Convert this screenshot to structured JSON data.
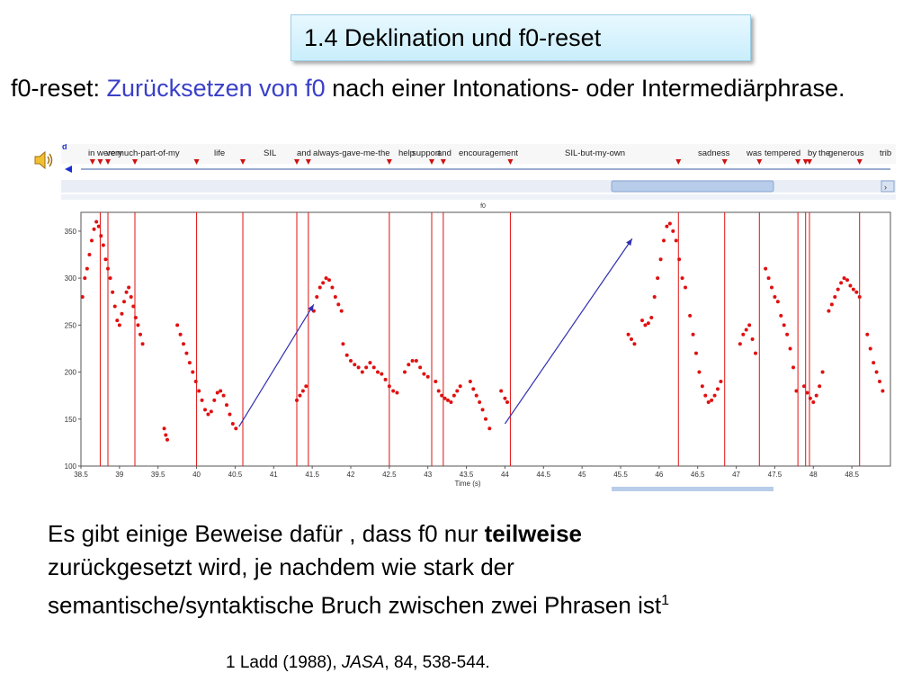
{
  "slide": {
    "title": "1.4 Deklination und f0-reset",
    "intro_prefix": "f0-reset: ",
    "intro_highlight1": "Zurücksetzen von f0",
    "intro_mid": " nach einer Intonations- oder Intermediärphrase."
  },
  "praat": {
    "toolbar_letter": "d",
    "panel_title": "f0",
    "xlabel": "Time (s)",
    "word_labels": [
      "in",
      "were",
      "very",
      "much-part-of-my",
      "life",
      "SIL",
      "and",
      "always-gave-me-the",
      "help",
      "support",
      "and",
      "encouragement",
      "SIL-but-my-own",
      "sadness",
      "was",
      "tempered",
      "by",
      "the",
      "generous",
      "trib"
    ],
    "colors": {
      "data": "#e01010",
      "boundary": "#e01010",
      "arrow": "#3030b0",
      "marker": "#d01010"
    }
  },
  "chart_data": {
    "type": "scatter",
    "title": "f0",
    "xlabel": "Time (s)",
    "ylabel": "",
    "xlim": [
      38.5,
      49.0
    ],
    "ylim": [
      100,
      370
    ],
    "xticks": [
      "38.5",
      "39",
      "39.5",
      "40",
      "40.5",
      "41",
      "41.5",
      "42",
      "42.5",
      "43",
      "43.5",
      "44",
      "44.5",
      "45",
      "45.5",
      "46",
      "46.5",
      "47",
      "47.5",
      "48",
      "48.5"
    ],
    "yticks": [
      "100",
      "150",
      "200",
      "250",
      "300",
      "350"
    ],
    "boundaries": [
      38.75,
      38.85,
      39.2,
      40.0,
      40.6,
      41.3,
      41.45,
      42.5,
      43.05,
      43.2,
      44.07,
      46.25,
      46.85,
      47.3,
      47.8,
      47.9,
      47.95,
      48.6
    ],
    "segments": [
      [
        [
          38.52,
          280
        ],
        [
          38.55,
          300
        ],
        [
          38.58,
          310
        ],
        [
          38.61,
          325
        ],
        [
          38.64,
          340
        ],
        [
          38.67,
          352
        ],
        [
          38.7,
          360
        ],
        [
          38.73,
          355
        ],
        [
          38.76,
          345
        ],
        [
          38.79,
          335
        ],
        [
          38.82,
          320
        ],
        [
          38.85,
          310
        ],
        [
          38.88,
          300
        ],
        [
          38.91,
          285
        ],
        [
          38.94,
          270
        ],
        [
          38.97,
          255
        ],
        [
          39.0,
          250
        ],
        [
          39.03,
          262
        ],
        [
          39.06,
          275
        ],
        [
          39.09,
          285
        ],
        [
          39.12,
          290
        ],
        [
          39.15,
          280
        ],
        [
          39.18,
          270
        ],
        [
          39.21,
          258
        ],
        [
          39.24,
          250
        ],
        [
          39.27,
          240
        ],
        [
          39.3,
          230
        ]
      ],
      [
        [
          39.58,
          140
        ],
        [
          39.6,
          133
        ],
        [
          39.62,
          128
        ]
      ],
      [
        [
          39.75,
          250
        ],
        [
          39.79,
          240
        ],
        [
          39.83,
          230
        ],
        [
          39.87,
          220
        ],
        [
          39.91,
          210
        ],
        [
          39.95,
          200
        ],
        [
          39.99,
          190
        ],
        [
          40.03,
          180
        ],
        [
          40.07,
          170
        ],
        [
          40.11,
          160
        ],
        [
          40.15,
          155
        ],
        [
          40.19,
          158
        ],
        [
          40.23,
          170
        ],
        [
          40.27,
          178
        ],
        [
          40.31,
          180
        ],
        [
          40.35,
          175
        ],
        [
          40.39,
          165
        ],
        [
          40.43,
          155
        ],
        [
          40.47,
          145
        ],
        [
          40.51,
          140
        ]
      ],
      [
        [
          41.3,
          170
        ],
        [
          41.34,
          175
        ],
        [
          41.38,
          180
        ],
        [
          41.42,
          185
        ]
      ],
      [
        [
          41.52,
          265
        ],
        [
          41.56,
          280
        ],
        [
          41.6,
          290
        ],
        [
          41.64,
          295
        ],
        [
          41.68,
          300
        ],
        [
          41.72,
          298
        ],
        [
          41.76,
          290
        ],
        [
          41.8,
          280
        ],
        [
          41.84,
          272
        ],
        [
          41.88,
          265
        ]
      ],
      [
        [
          41.9,
          230
        ],
        [
          41.95,
          218
        ],
        [
          42.0,
          212
        ],
        [
          42.05,
          208
        ],
        [
          42.1,
          205
        ],
        [
          42.15,
          200
        ],
        [
          42.2,
          205
        ],
        [
          42.25,
          210
        ],
        [
          42.3,
          205
        ],
        [
          42.35,
          200
        ],
        [
          42.4,
          198
        ],
        [
          42.45,
          192
        ],
        [
          42.5,
          185
        ],
        [
          42.55,
          180
        ],
        [
          42.6,
          178
        ]
      ],
      [
        [
          42.7,
          200
        ],
        [
          42.75,
          208
        ],
        [
          42.8,
          212
        ],
        [
          42.85,
          212
        ],
        [
          42.9,
          205
        ],
        [
          42.95,
          198
        ],
        [
          43.0,
          195
        ]
      ],
      [
        [
          43.1,
          190
        ],
        [
          43.14,
          180
        ],
        [
          43.18,
          175
        ],
        [
          43.22,
          172
        ],
        [
          43.26,
          170
        ],
        [
          43.3,
          168
        ],
        [
          43.34,
          175
        ],
        [
          43.38,
          180
        ],
        [
          43.42,
          185
        ]
      ],
      [
        [
          43.55,
          190
        ],
        [
          43.59,
          182
        ],
        [
          43.63,
          175
        ],
        [
          43.67,
          168
        ],
        [
          43.71,
          160
        ],
        [
          43.75,
          150
        ],
        [
          43.8,
          140
        ]
      ],
      [
        [
          43.95,
          180
        ],
        [
          44.0,
          172
        ],
        [
          44.03,
          168
        ]
      ],
      [
        [
          45.6,
          240
        ],
        [
          45.64,
          235
        ],
        [
          45.68,
          230
        ]
      ],
      [
        [
          45.78,
          255
        ],
        [
          45.82,
          250
        ],
        [
          45.86,
          252
        ],
        [
          45.9,
          258
        ],
        [
          45.94,
          280
        ],
        [
          45.98,
          300
        ],
        [
          46.02,
          320
        ],
        [
          46.06,
          340
        ],
        [
          46.1,
          355
        ],
        [
          46.14,
          358
        ],
        [
          46.18,
          350
        ],
        [
          46.22,
          340
        ],
        [
          46.26,
          320
        ],
        [
          46.3,
          300
        ],
        [
          46.34,
          290
        ]
      ],
      [
        [
          46.4,
          260
        ],
        [
          46.44,
          240
        ],
        [
          46.48,
          220
        ],
        [
          46.52,
          200
        ],
        [
          46.56,
          185
        ],
        [
          46.6,
          175
        ],
        [
          46.64,
          168
        ],
        [
          46.68,
          170
        ],
        [
          46.72,
          175
        ],
        [
          46.76,
          182
        ],
        [
          46.8,
          190
        ]
      ],
      [
        [
          47.05,
          230
        ],
        [
          47.09,
          240
        ],
        [
          47.13,
          245
        ],
        [
          47.17,
          250
        ],
        [
          47.21,
          235
        ],
        [
          47.25,
          220
        ]
      ],
      [
        [
          47.38,
          310
        ],
        [
          47.42,
          300
        ],
        [
          47.46,
          290
        ],
        [
          47.5,
          280
        ],
        [
          47.54,
          275
        ],
        [
          47.58,
          260
        ],
        [
          47.62,
          250
        ],
        [
          47.66,
          240
        ],
        [
          47.7,
          225
        ],
        [
          47.74,
          205
        ],
        [
          47.78,
          180
        ]
      ],
      [
        [
          47.88,
          185
        ],
        [
          47.92,
          178
        ],
        [
          47.96,
          172
        ],
        [
          48.0,
          168
        ],
        [
          48.04,
          175
        ],
        [
          48.08,
          185
        ],
        [
          48.12,
          200
        ]
      ],
      [
        [
          48.2,
          265
        ],
        [
          48.24,
          272
        ],
        [
          48.28,
          280
        ],
        [
          48.32,
          288
        ],
        [
          48.36,
          295
        ],
        [
          48.4,
          300
        ],
        [
          48.44,
          298
        ],
        [
          48.48,
          292
        ],
        [
          48.52,
          288
        ],
        [
          48.56,
          285
        ],
        [
          48.6,
          280
        ]
      ],
      [
        [
          48.7,
          240
        ],
        [
          48.74,
          225
        ],
        [
          48.78,
          210
        ],
        [
          48.82,
          200
        ],
        [
          48.86,
          190
        ],
        [
          48.9,
          180
        ]
      ]
    ],
    "arrows": [
      {
        "from": [
          40.55,
          142
        ],
        "to": [
          41.52,
          272
        ]
      },
      {
        "from": [
          44.0,
          145
        ],
        "to": [
          45.65,
          342
        ]
      }
    ]
  },
  "body_text": {
    "line1_prefix": "Es gibt einige Beweise dafür , dass f0 nur ",
    "line1_bold": "teilweise",
    "line2": "zurückgesetzt wird, je nachdem wie stark der",
    "line3": "semantische/syntaktische Bruch zwischen zwei Phrasen  ist",
    "sup": "1"
  },
  "footnote": {
    "prefix": "1 Ladd (1988), ",
    "journal": "JASA",
    "rest": ", 84, 538-544."
  }
}
